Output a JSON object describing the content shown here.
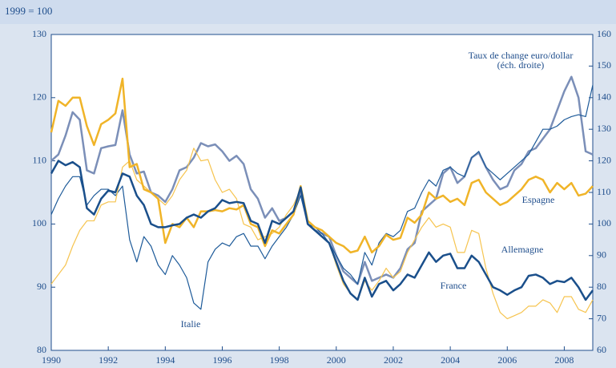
{
  "chart_data": {
    "type": "line",
    "y_label": "1999 = 100",
    "x": [
      1990,
      1990.25,
      1990.5,
      1990.75,
      1991,
      1991.25,
      1991.5,
      1991.75,
      1992,
      1992.25,
      1992.5,
      1992.75,
      1993,
      1993.25,
      1993.5,
      1993.75,
      1994,
      1994.25,
      1994.5,
      1994.75,
      1995,
      1995.25,
      1995.5,
      1995.75,
      1996,
      1996.25,
      1996.5,
      1996.75,
      1997,
      1997.25,
      1997.5,
      1997.75,
      1998,
      1998.25,
      1998.5,
      1998.75,
      1999,
      1999.25,
      1999.5,
      1999.75,
      2000,
      2000.25,
      2000.5,
      2000.75,
      2001,
      2001.25,
      2001.5,
      2001.75,
      2002,
      2002.25,
      2002.5,
      2002.75,
      2003,
      2003.25,
      2003.5,
      2003.75,
      2004,
      2004.25,
      2004.5,
      2004.75,
      2005,
      2005.25,
      2005.5,
      2005.75,
      2006,
      2006.25,
      2006.5,
      2006.75,
      2007,
      2007.25,
      2007.5,
      2007.75,
      2008,
      2008.25,
      2008.5,
      2008.75,
      2009
    ],
    "xlim": [
      1990,
      2009
    ],
    "xticks": [
      1990,
      1992,
      1994,
      1996,
      1998,
      2000,
      2002,
      2004,
      2006,
      2008
    ],
    "ylim": [
      80,
      130
    ],
    "yticks": [
      80,
      90,
      100,
      110,
      120,
      130
    ],
    "y2lim": [
      60,
      160
    ],
    "y2ticks": [
      60,
      70,
      80,
      90,
      100,
      110,
      120,
      130,
      140,
      150,
      160
    ],
    "series": [
      {
        "name": "Taux de change euro/dollar",
        "note": "(éch. droite)",
        "axis": "y2",
        "color": "#7b8fb8",
        "values": [
          120,
          122,
          128,
          135.4,
          133,
          117,
          116,
          124,
          124.6,
          125,
          136,
          122,
          116,
          116.6,
          110,
          109,
          107,
          111,
          117,
          118,
          121,
          125.6,
          124.6,
          125.2,
          123,
          120,
          121.6,
          119,
          111,
          108,
          102,
          105,
          101,
          102,
          104,
          110,
          100,
          98,
          97,
          96,
          90,
          85,
          83,
          81,
          88,
          82,
          83,
          84,
          83,
          86,
          92,
          94,
          104,
          106,
          108,
          116,
          118,
          113,
          115,
          121,
          122.6,
          118,
          114,
          111,
          112,
          117,
          119,
          123,
          124,
          127,
          130,
          136,
          142,
          146.6,
          140,
          123,
          122
        ]
      },
      {
        "name": "Italie",
        "color": "#1d5a99",
        "values": [
          101.5,
          104,
          106,
          107.5,
          107.5,
          103,
          104.5,
          105.5,
          105.5,
          104.5,
          106,
          97.5,
          94,
          98,
          96.5,
          93.5,
          92,
          95,
          93.5,
          91.5,
          87.5,
          86.5,
          94,
          96,
          97,
          96.5,
          98,
          98.5,
          96.5,
          96.5,
          94.5,
          96.5,
          98,
          99.5,
          101.5,
          104.5,
          100,
          99.5,
          98.5,
          97,
          95,
          93,
          92,
          90.5,
          95.5,
          93.5,
          97,
          98.5,
          98,
          99,
          102,
          102.5,
          105,
          107,
          106,
          108.5,
          109,
          108,
          107.5,
          110.5,
          111.5,
          109,
          108,
          107,
          108,
          109,
          110,
          111,
          113,
          115,
          115,
          115.5,
          116.5,
          117,
          117.3,
          117,
          122
        ]
      },
      {
        "name": "Allemagne",
        "color": "#f6c44f",
        "values": [
          90.5,
          92,
          93.5,
          96.5,
          99,
          100.5,
          100.5,
          103,
          103.5,
          103.5,
          109,
          110,
          107,
          106,
          105,
          104,
          103,
          104.5,
          107,
          108.5,
          112,
          110,
          110.2,
          107,
          105,
          105.5,
          104,
          100,
          99.5,
          97.5,
          98,
          98.5,
          99.5,
          101.5,
          103,
          105.5,
          100,
          99,
          98,
          97,
          93.5,
          90.5,
          89,
          88,
          91,
          89.5,
          91,
          93,
          91.5,
          92.5,
          95.5,
          97.5,
          99.5,
          101,
          99.5,
          100,
          99.5,
          95.5,
          95.5,
          99,
          98.5,
          93,
          89,
          86,
          85,
          85.5,
          86,
          87,
          87,
          88,
          87.5,
          86,
          88.5,
          88.5,
          86.5,
          86,
          88
        ]
      },
      {
        "name": "Espagne",
        "color": "#f0b428",
        "values": [
          114.5,
          119.5,
          118.7,
          120,
          120,
          115.5,
          112.5,
          115.8,
          116.5,
          117.5,
          123,
          109,
          109.5,
          105.5,
          105,
          104,
          97,
          100,
          99.5,
          101,
          99.5,
          102,
          102,
          102.2,
          102,
          102.5,
          102.3,
          103,
          100,
          99.5,
          96.5,
          99,
          98.5,
          100,
          101.5,
          106,
          100.5,
          99.5,
          99,
          98,
          97,
          96.5,
          95.5,
          95.8,
          98,
          95.5,
          96.5,
          98.3,
          97.5,
          97.8,
          101,
          100.2,
          101.5,
          105,
          104,
          104.5,
          103.5,
          104,
          103,
          106.5,
          107,
          105,
          104,
          103,
          103.5,
          104.5,
          105.5,
          107,
          107.5,
          107,
          105,
          106.5,
          105.5,
          106.5,
          104.5,
          104.8,
          106
        ]
      },
      {
        "name": "France",
        "color": "#1a4f8b",
        "values": [
          108,
          110,
          109.3,
          109.8,
          109,
          102.5,
          101.5,
          104,
          105.3,
          105,
          108,
          107.5,
          104.5,
          103,
          100,
          99.5,
          99.5,
          99.8,
          100,
          101,
          101.5,
          101,
          102,
          102.5,
          103.8,
          103.3,
          103.5,
          103.3,
          100.5,
          100,
          97,
          100.5,
          100,
          101,
          102,
          105.8,
          100,
          99,
          98,
          97,
          94,
          91,
          89,
          88,
          91.5,
          88.5,
          90.5,
          91,
          89.5,
          90.5,
          92,
          91.5,
          93.5,
          95.5,
          94,
          95,
          95.3,
          93,
          93,
          95,
          94,
          92,
          90,
          89.5,
          88.8,
          89.5,
          90,
          91.8,
          92,
          91.5,
          90.5,
          91,
          90.8,
          91.5,
          90,
          88,
          89.5
        ]
      }
    ]
  }
}
